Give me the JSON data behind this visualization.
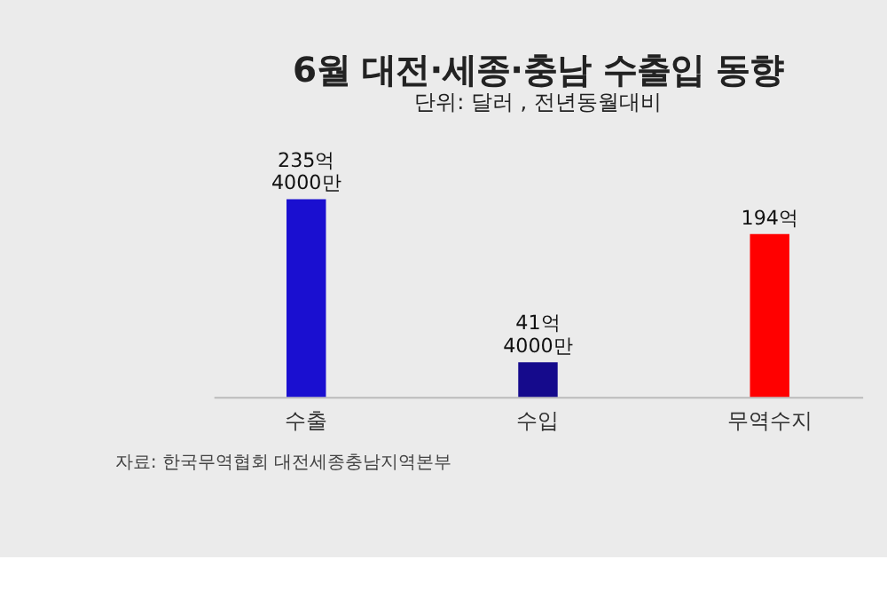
{
  "chart_data": {
    "type": "bar",
    "title": "6월 대전·세종·충남 수출입 동향",
    "subtitle": "단위: 달러 , 전년동월대비",
    "categories": [
      "수출",
      "수입",
      "무역수지"
    ],
    "values": [
      235.4,
      41.4,
      194
    ],
    "value_labels": [
      "235억\n4000만",
      "41억\n4000만",
      "194억"
    ],
    "colors": [
      "#1a0fd0",
      "#150a8c",
      "#ff0000"
    ],
    "annotations": [
      "자료: 한국무역협회 대전세종충남지역본부"
    ],
    "grid": false,
    "legend": false
  }
}
